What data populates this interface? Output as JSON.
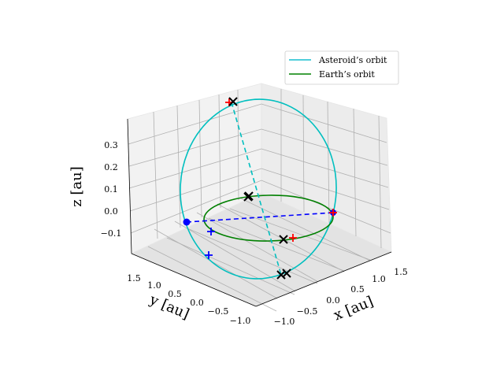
{
  "chart_data": {
    "type": "line3d",
    "axes": {
      "x": {
        "label": "x [au]",
        "ticks": [
          "−1.0",
          "−0.5",
          "0.0",
          "0.5",
          "1.0",
          "1.5"
        ]
      },
      "y": {
        "label": "y [au]",
        "ticks": [
          "1.5",
          "1.0",
          "0.5",
          "0.0",
          "−0.5",
          "−1.0"
        ]
      },
      "z": {
        "label": "z [au]",
        "ticks": [
          "−0.1",
          "0.0",
          "0.1",
          "0.2",
          "0.3"
        ]
      }
    },
    "legend": {
      "placement": "top-right",
      "entries": [
        {
          "label": "Asteroid’s orbit",
          "color": "#17becf"
        },
        {
          "label": "Earth’s orbit",
          "color": "#008000"
        }
      ]
    },
    "grid": true,
    "colors": {
      "asteroid": "#00bfbf",
      "earth": "#008000",
      "blue_markers": "#0000ff",
      "red_markers": "#ff0000",
      "black_markers": "#000000"
    }
  }
}
